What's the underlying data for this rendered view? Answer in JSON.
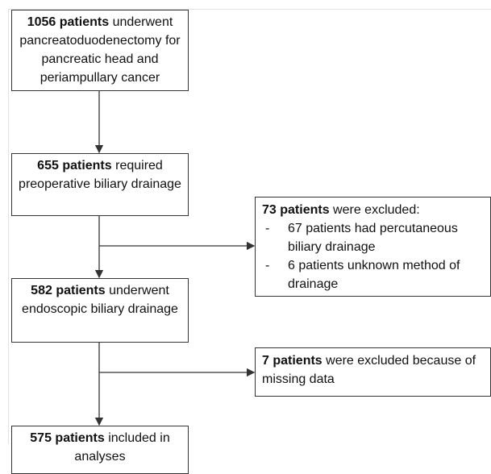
{
  "nodes": [
    {
      "count": "1056 patients",
      "text": "underwent pancreatoduodenectomy for pancreatic head and periampullary cancer"
    },
    {
      "count": "655 patients",
      "text": "required preoperative biliary drainage"
    },
    {
      "count": "73 patients",
      "text": "were excluded:",
      "items": [
        "67 patients had percutaneous biliary drainage",
        "6 patients unknown method of drainage"
      ]
    },
    {
      "count": "582 patients",
      "text": "underwent endoscopic biliary drainage"
    },
    {
      "count": "7 patients",
      "text": "were excluded because of missing data"
    },
    {
      "count": "575 patients",
      "text": "included in analyses"
    }
  ]
}
